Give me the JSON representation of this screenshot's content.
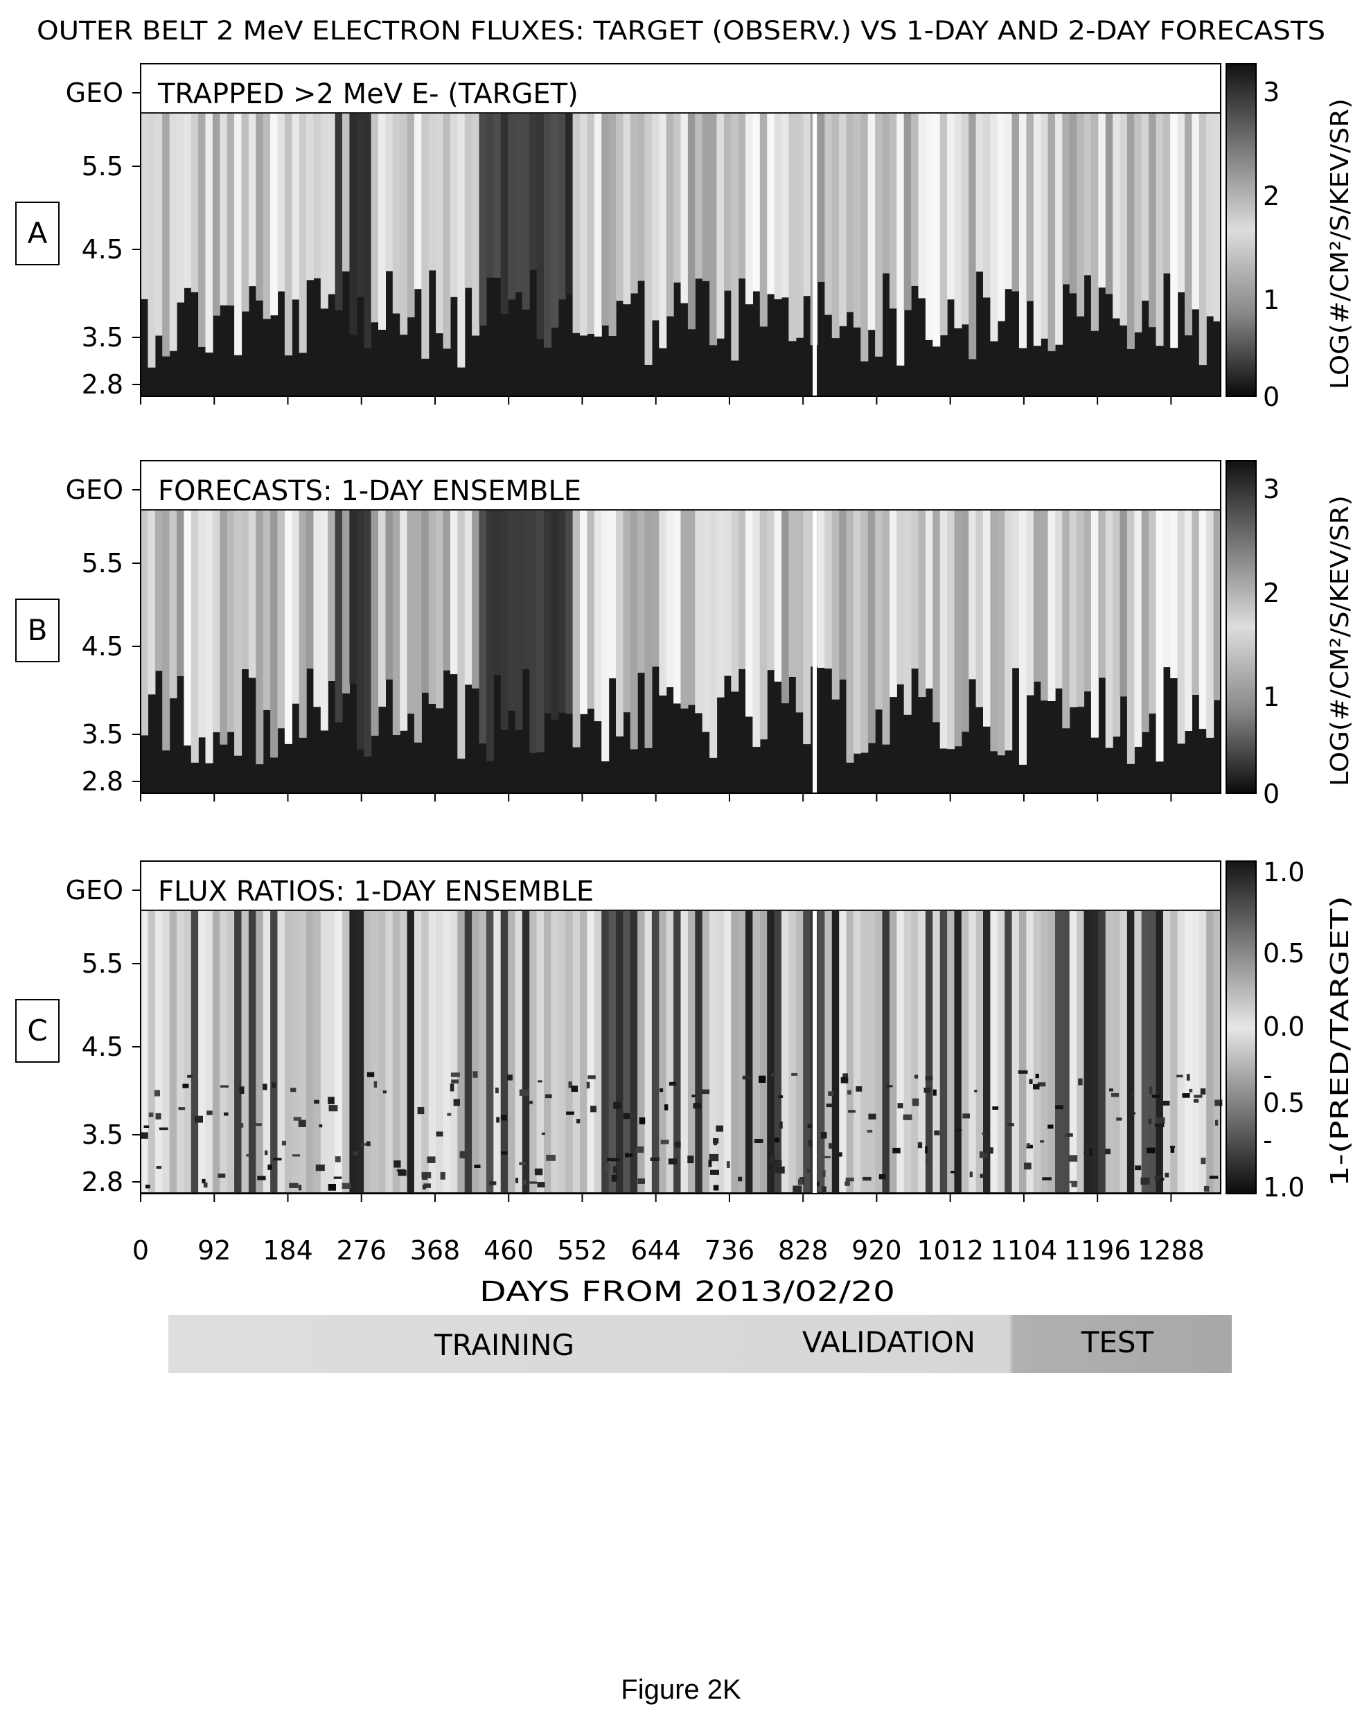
{
  "title": "OUTER BELT 2 MeV ELECTRON FLUXES: TARGET (OBSERV.) VS 1-DAY AND 2-DAY FORECASTS",
  "figure_caption": "Figure 2K",
  "xlabel": "DAYS FROM 2013/02/20",
  "x_ticks": [
    "0",
    "92",
    "184",
    "276",
    "368",
    "460",
    "552",
    "644",
    "736",
    "828",
    "920",
    "1012",
    "1104",
    "1196",
    "1288"
  ],
  "y_ticks": [
    "GEO",
    "5.5",
    "4.5",
    "3.5",
    "2.8"
  ],
  "panels": [
    {
      "letter": "A",
      "label": "TRAPPED >2 MeV E- (TARGET)",
      "colorbar_label": "LOG(#/CM²/S/KEV/SR)",
      "colorbar_ticks": [
        "3",
        "2",
        "1",
        "0"
      ]
    },
    {
      "letter": "B",
      "label": "FORECASTS: 1-DAY ENSEMBLE",
      "colorbar_label": "LOG(#/CM²/S/KEV/SR)",
      "colorbar_ticks": [
        "3",
        "2",
        "1",
        "0"
      ]
    },
    {
      "letter": "C",
      "label": "FLUX RATIOS: 1-DAY ENSEMBLE",
      "colorbar_label": "1-(PRED/TARGET)",
      "colorbar_ticks": [
        "1.0",
        "0.5",
        "0.0",
        "-",
        "0.5",
        "-",
        "1.0"
      ]
    }
  ],
  "legend_bar": {
    "training": "TRAINING",
    "validation": "VALIDATION",
    "test": "TEST"
  },
  "chart_data": {
    "type": "heatmap",
    "title": "OUTER BELT 2 MeV ELECTRON FLUXES: TARGET (OBSERV.) VS 1-DAY AND 2-DAY FORECASTS",
    "xlabel": "DAYS FROM 2013/02/20",
    "x_range": [
      0,
      1350
    ],
    "y_ticks": [
      "GEO",
      "5.5",
      "4.5",
      "3.5",
      "2.8"
    ],
    "colormap": "grayscale",
    "panels": [
      {
        "name": "TRAPPED >2 MeV E- (TARGET)",
        "colorbar_range": [
          0,
          3.2
        ]
      },
      {
        "name": "FORECASTS: 1-DAY ENSEMBLE",
        "colorbar_range": [
          0,
          3.2
        ]
      },
      {
        "name": "FLUX RATIOS: 1-DAY ENSEMBLE",
        "colorbar_range": [
          -1.0,
          1.0
        ]
      }
    ],
    "data_split": [
      {
        "name": "TRAINING",
        "days": [
          0,
          828
        ]
      },
      {
        "name": "VALIDATION",
        "days": [
          828,
          1050
        ]
      },
      {
        "name": "TEST",
        "days": [
          1050,
          1350
        ]
      }
    ],
    "gaps_days": [
      840
    ]
  }
}
